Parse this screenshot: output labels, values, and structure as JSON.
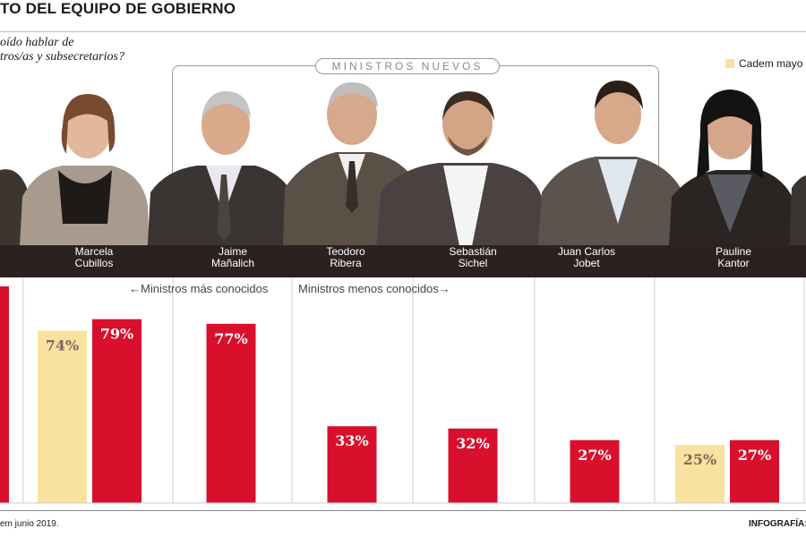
{
  "header": {
    "title": "TO DEL EQUIPO DE GOBIERNO",
    "question_line1": "oído hablar de",
    "question_line2": "tros/as y subsecretarios?"
  },
  "bracket": {
    "label": "MINISTROS NUEVOS"
  },
  "legend": {
    "cadem_label": "Cadem mayo"
  },
  "sections": {
    "more_known": "←Ministros más conocidos",
    "less_known": "Ministros menos conocidos→"
  },
  "people": [
    {
      "line1": "",
      "line2": ""
    },
    {
      "line1": "Marcela",
      "line2": "Cubillos"
    },
    {
      "line1": "Jaime",
      "line2": "Mañalich"
    },
    {
      "line1": "Teodoro",
      "line2": "Ribera"
    },
    {
      "line1": "Sebastián",
      "line2": "Sichel"
    },
    {
      "line1": "Juan Carlos",
      "line2": "Jobet"
    },
    {
      "line1": "Pauline",
      "line2": "Kantor"
    },
    {
      "line1": "",
      "line2": ""
    }
  ],
  "footer": {
    "left": "em junio 2019.",
    "right": "INFOGRAFÍA: A"
  },
  "colors": {
    "june": "#d8102c",
    "may": "#f9e2a0",
    "name_band": "#2b2220"
  },
  "chart_data": {
    "type": "bar",
    "ylim": [
      0,
      100
    ],
    "series": [
      {
        "name": "Cadem mayo",
        "values": [
          null,
          74,
          null,
          null,
          null,
          null,
          25,
          null
        ]
      },
      {
        "name": "",
        "values": [
          null,
          79,
          77,
          33,
          32,
          27,
          27,
          null
        ]
      }
    ],
    "labels": {
      "may": [
        null,
        "74%",
        null,
        null,
        null,
        null,
        "25%",
        null
      ],
      "june": [
        null,
        "79%",
        "77%",
        "33%",
        "32%",
        "27%",
        "27%",
        null
      ]
    }
  }
}
